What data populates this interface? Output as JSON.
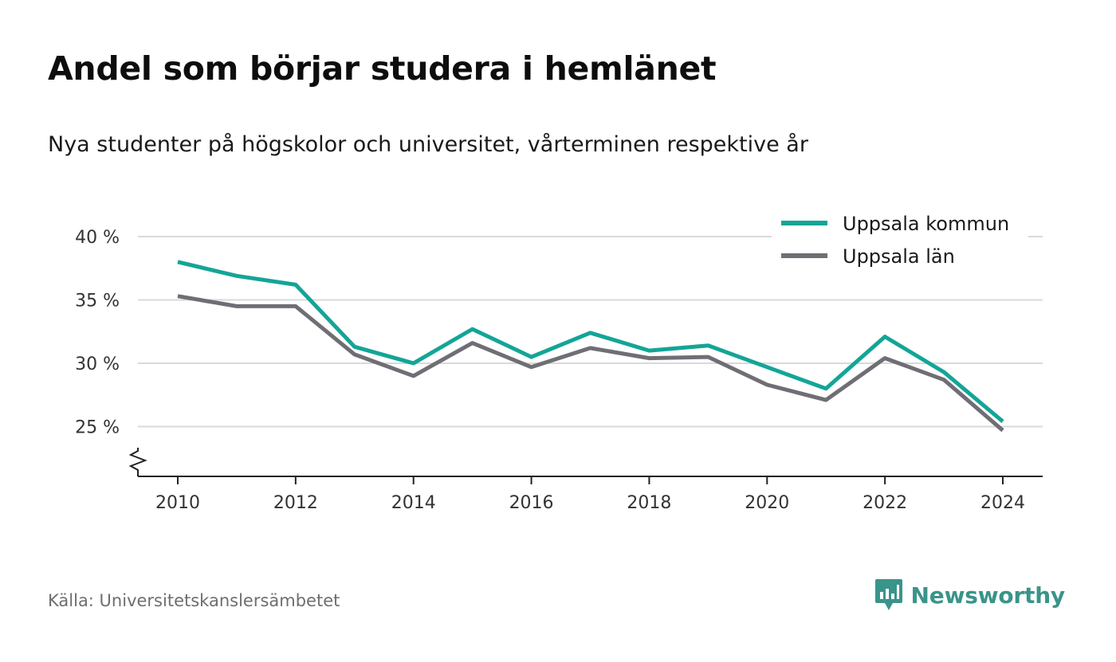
{
  "title": "Andel som börjar studera i hemlänet",
  "subtitle": "Nya studenter på högskolor och universitet, vårterminen respektive år",
  "source": "Källa: Universitetskanslersämbetet",
  "brand": {
    "name": "Newsworthy",
    "icon": "newsworthy-logo-icon",
    "color": "#3a948a"
  },
  "chart_data": {
    "type": "line",
    "x": [
      2010,
      2011,
      2012,
      2013,
      2014,
      2015,
      2016,
      2017,
      2018,
      2019,
      2020,
      2021,
      2022,
      2023,
      2024
    ],
    "series": [
      {
        "name": "Uppsala kommun",
        "color": "#13a597",
        "values": [
          38.0,
          36.9,
          36.2,
          31.3,
          30.0,
          32.7,
          30.5,
          32.4,
          31.0,
          31.4,
          29.7,
          28.0,
          32.1,
          29.3,
          25.4
        ]
      },
      {
        "name": "Uppsala län",
        "color": "#6f6e75",
        "values": [
          35.3,
          34.5,
          34.5,
          30.7,
          29.0,
          31.6,
          29.7,
          31.2,
          30.4,
          30.5,
          28.3,
          27.1,
          30.4,
          28.7,
          24.7
        ]
      }
    ],
    "xticks": [
      "2010",
      "2012",
      "2014",
      "2016",
      "2018",
      "2020",
      "2022",
      "2024"
    ],
    "yticks": [
      {
        "value": 25,
        "label": "25 %"
      },
      {
        "value": 30,
        "label": "30 %"
      },
      {
        "value": 35,
        "label": "35 %"
      },
      {
        "value": 40,
        "label": "40 %"
      }
    ],
    "xlim": [
      2010,
      2024
    ],
    "ylim": [
      21,
      40
    ],
    "y_axis_break": true,
    "grid": true,
    "legend": "top-right"
  }
}
